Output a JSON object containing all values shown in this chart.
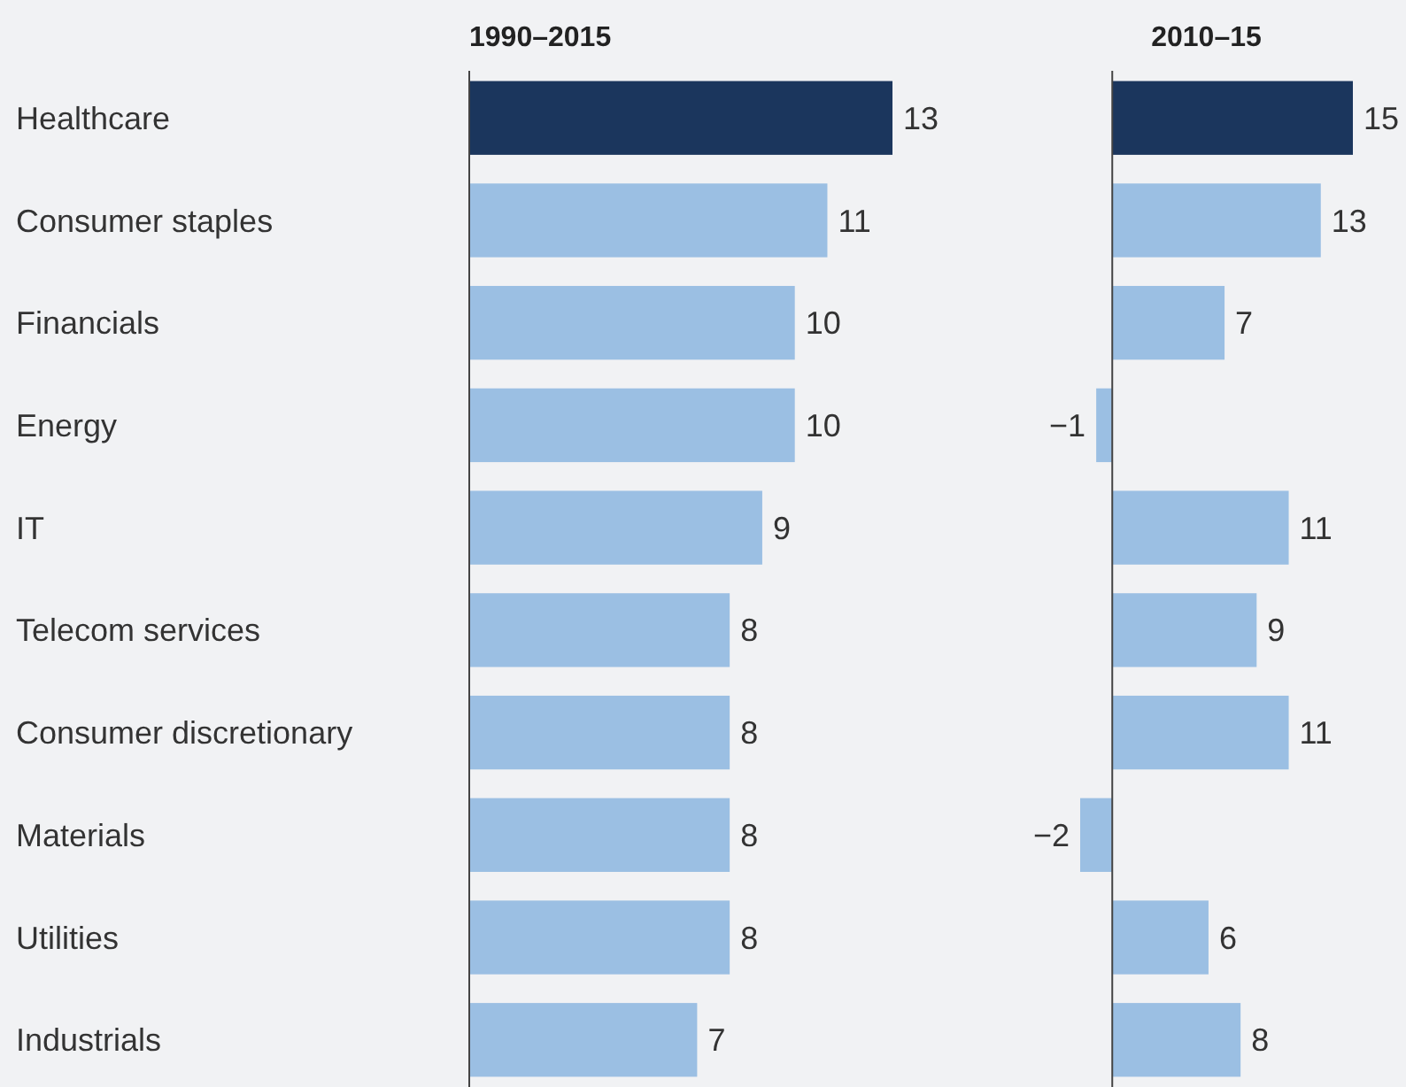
{
  "chart_data": [
    {
      "type": "bar",
      "orientation": "horizontal",
      "title": "1990–2015",
      "categories": [
        "Healthcare",
        "Consumer staples",
        "Financials",
        "Energy",
        "IT",
        "Telecom services",
        "Consumer discretionary",
        "Materials",
        "Utilities",
        "Industrials"
      ],
      "values": [
        13,
        11,
        10,
        10,
        9,
        8,
        8,
        8,
        8,
        7
      ],
      "colors": [
        "#1b365d",
        "#9bbfe3",
        "#9bbfe3",
        "#9bbfe3",
        "#9bbfe3",
        "#9bbfe3",
        "#9bbfe3",
        "#9bbfe3",
        "#9bbfe3",
        "#9bbfe3"
      ],
      "data_labels": true
    },
    {
      "type": "bar",
      "orientation": "horizontal",
      "title": "2010–15",
      "categories": [
        null,
        null,
        null,
        null,
        null,
        null,
        null,
        null,
        null,
        null
      ],
      "values": [
        15,
        13,
        7,
        -1,
        11,
        9,
        11,
        -2,
        6,
        8
      ],
      "colors": [
        "#1b365d",
        "#9bbfe3",
        "#9bbfe3",
        "#9bbfe3",
        "#9bbfe3",
        "#9bbfe3",
        "#9bbfe3",
        "#9bbfe3",
        "#9bbfe3",
        "#9bbfe3"
      ],
      "data_labels": true
    }
  ]
}
